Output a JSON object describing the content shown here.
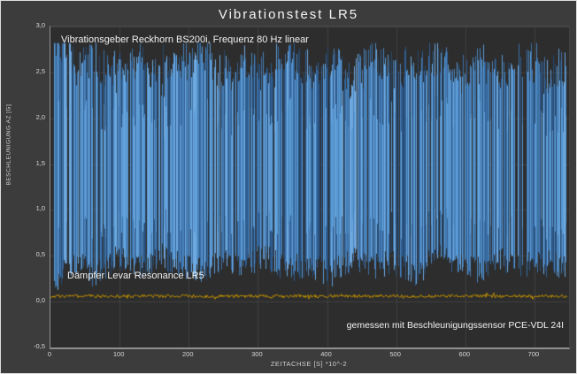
{
  "window": {
    "background": "#3c3c3c",
    "plot_background": "#2d2d2d",
    "border_color": "#dedede"
  },
  "chart_data": {
    "type": "line",
    "title": "Vibrationstest LR5",
    "xlabel": "ZEITACHSE [S] *10^-2",
    "ylabel": "BESCHLEUNIGUNG AZ [G]",
    "xlim": [
      0,
      750
    ],
    "ylim": [
      -0.5,
      3.0
    ],
    "xticks": {
      "values": [
        0,
        100,
        200,
        300,
        400,
        500,
        600,
        700
      ],
      "labels": [
        "0",
        "100",
        "200",
        "300",
        "400",
        "500",
        "600",
        "700"
      ]
    },
    "yticks": {
      "values": [
        3.0,
        2.5,
        2.0,
        1.5,
        1.0,
        0.5,
        0.0,
        -0.5
      ],
      "labels": [
        "3,0",
        "2,5",
        "2,0",
        "1,5",
        "1,0",
        "0,5",
        "0,0",
        "-0,5"
      ]
    },
    "grid": true,
    "grid_color": "#414141",
    "axis_color": "#8f8f8f",
    "tick_color": "#d6d6d6",
    "series": [
      {
        "name": "Vibrationsgeber Reckhorn BS200i, Frequenz 80 Hz linear",
        "type": "dense-oscillation",
        "color": "#5b9bd5",
        "palette": [
          "#2f5e93",
          "#4a82ba",
          "#5b9bd5",
          "#6ea9e0",
          "#3d71a6",
          "#27496f"
        ],
        "x_start": 2,
        "x_end": 745,
        "frequency_hz": 80,
        "mean_g": 1.45,
        "upper_envelope_g": [
          2.78,
          2.55,
          2.62,
          2.45,
          2.68,
          2.42,
          2.58,
          2.7,
          2.48,
          2.6,
          2.44,
          2.66,
          2.52,
          2.6,
          2.42,
          2.65,
          2.5,
          2.58,
          2.68,
          2.46,
          2.6,
          2.52,
          2.64,
          2.48,
          2.58
        ],
        "lower_envelope_g": [
          0.2,
          0.42,
          0.3,
          0.48,
          0.35,
          0.5,
          0.4,
          0.32,
          0.45,
          0.38,
          0.5,
          0.35,
          0.42,
          0.3,
          0.46,
          0.38,
          0.44,
          0.32,
          0.48,
          0.4,
          0.35,
          0.45,
          0.38,
          0.42,
          0.36
        ],
        "seed": 7
      },
      {
        "name": "Dämpfer Levar Resonance LR5",
        "type": "noisy-flat",
        "color": "#bf9000",
        "x_start": 0,
        "x_end": 748,
        "mean_g": 0.06,
        "noise_g": 0.018,
        "seed": 3
      }
    ],
    "annotations": [
      {
        "id": "source",
        "text": "Vibrationsgeber Reckhorn BS200i, Frequenz 80 Hz linear"
      },
      {
        "id": "damper",
        "text": "Dämpfer Levar Resonance LR5"
      },
      {
        "id": "sensor",
        "text": "gemessen mit Beschleunigungssensor PCE-VDL 24I"
      }
    ]
  }
}
